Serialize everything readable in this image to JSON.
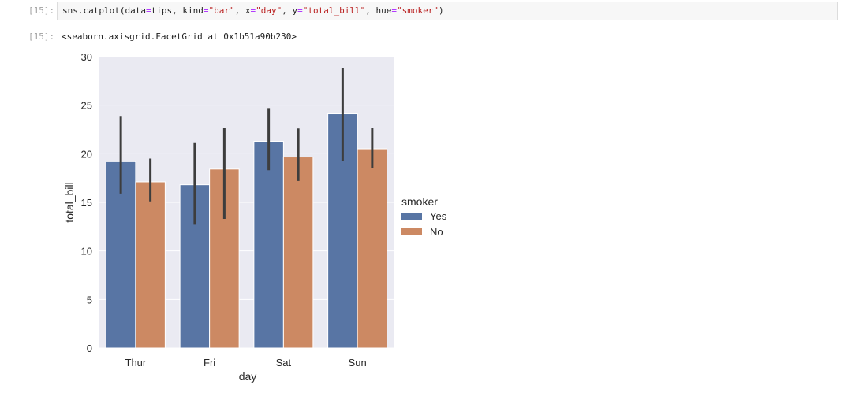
{
  "cell": {
    "in_prompt": "[15]:",
    "out_prompt": "[15]:",
    "code": {
      "fn": "sns.catplot(",
      "arg_data_key": "data",
      "arg_data_val": "tips",
      "arg_kind_key": "kind",
      "arg_kind_val": "\"bar\"",
      "arg_x_key": "x",
      "arg_x_val": "\"day\"",
      "arg_y_key": "y",
      "arg_y_val": "\"total_bill\"",
      "arg_hue_key": "hue",
      "arg_hue_val": "\"smoker\"",
      "close": ")"
    },
    "output": "<seaborn.axisgrid.FacetGrid at 0x1b51a90b230>"
  },
  "chart_data": {
    "type": "bar",
    "xlabel": "day",
    "ylabel": "total_bill",
    "categories": [
      "Thur",
      "Fri",
      "Sat",
      "Sun"
    ],
    "ylim": [
      0,
      30
    ],
    "yticks": [
      0,
      5,
      10,
      15,
      20,
      25,
      30
    ],
    "grid": true,
    "legend": {
      "title": "smoker",
      "placement": "right"
    },
    "series": [
      {
        "name": "Yes",
        "color": "#5875a4",
        "values": [
          19.19,
          16.81,
          21.28,
          24.12
        ],
        "ci": [
          [
            15.9,
            23.9
          ],
          [
            12.7,
            21.1
          ],
          [
            18.3,
            24.7
          ],
          [
            19.3,
            28.8
          ]
        ]
      },
      {
        "name": "No",
        "color": "#cc8963",
        "values": [
          17.11,
          18.42,
          19.66,
          20.51
        ],
        "ci": [
          [
            15.1,
            19.5
          ],
          [
            13.3,
            22.7
          ],
          [
            17.2,
            22.6
          ],
          [
            18.5,
            22.7
          ]
        ]
      }
    ],
    "bg_color": "#eaeaf2",
    "errbar_color": "#3d3d3d"
  }
}
